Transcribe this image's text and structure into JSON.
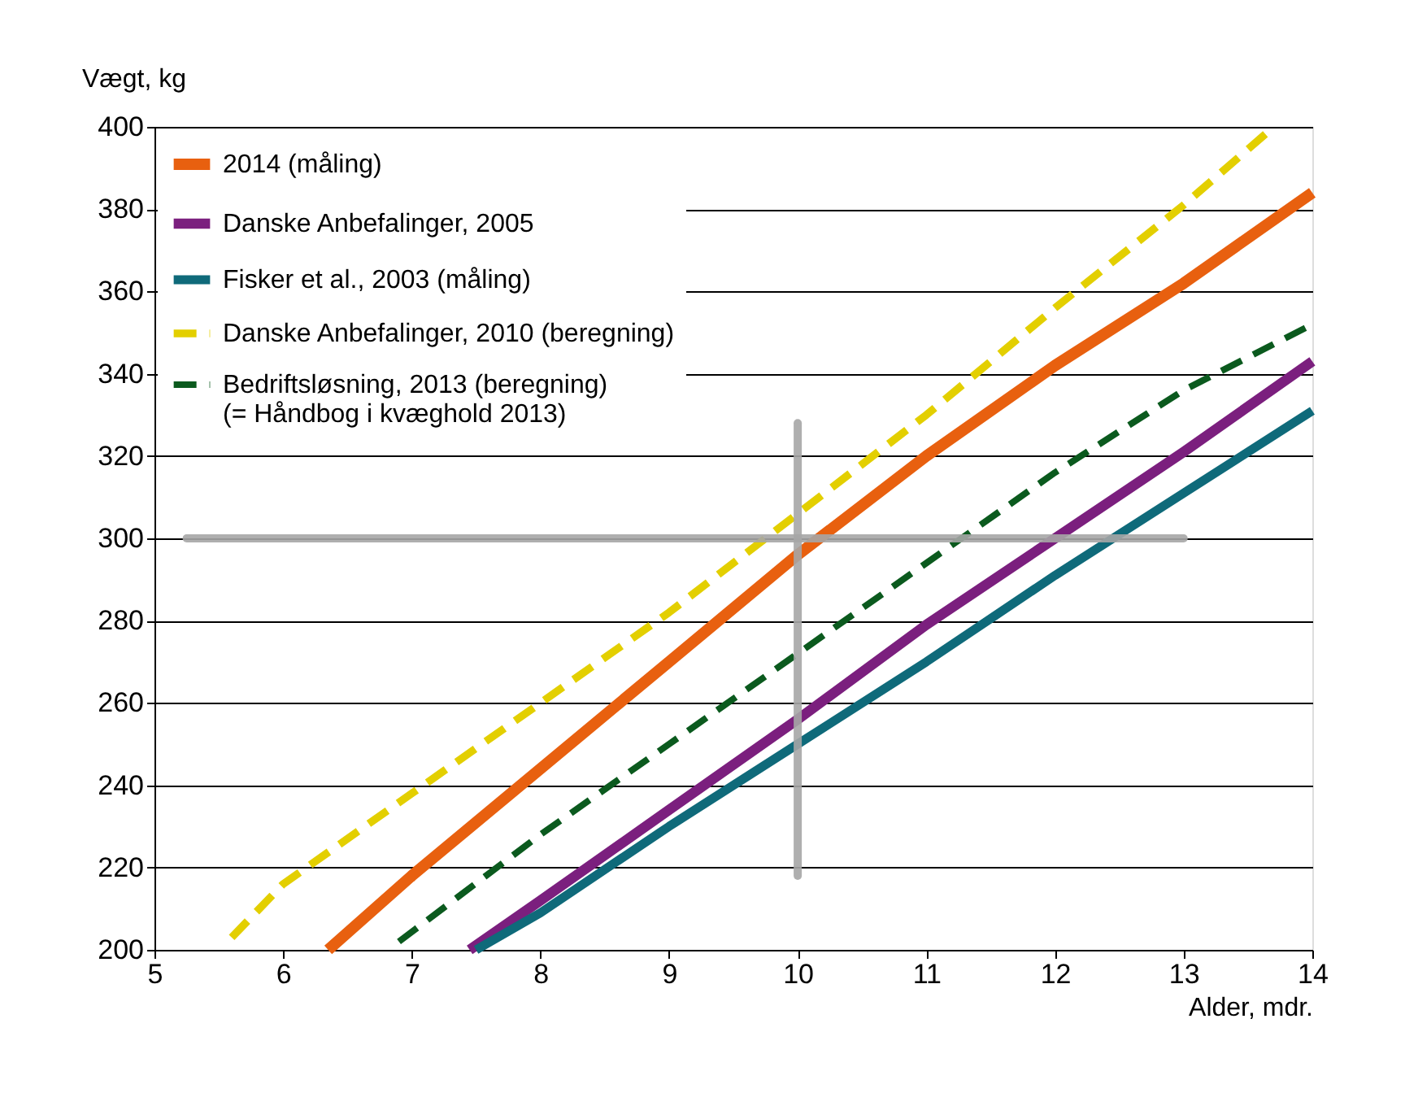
{
  "chart_data": {
    "type": "line",
    "xlabel": "Alder, mdr.",
    "ylabel": "Vægt, kg",
    "xlim": [
      5,
      14
    ],
    "xticks": [
      5,
      6,
      7,
      8,
      9,
      10,
      11,
      12,
      13,
      14
    ],
    "ylim": [
      200,
      400
    ],
    "yticks": [
      200,
      220,
      240,
      260,
      280,
      300,
      320,
      340,
      360,
      380,
      400
    ],
    "grid": "y",
    "legend": "top left",
    "marker": "none",
    "series": [
      {
        "name": "2014 (måling)",
        "color": "#e8600f",
        "line_style": "solid",
        "x": [
          6.35,
          7,
          8,
          9,
          10,
          11,
          12,
          13,
          14
        ],
        "values": [
          200,
          218,
          244,
          270,
          296,
          320,
          342,
          362,
          384
        ]
      },
      {
        "name": "Danske Anbefalinger, 2005",
        "color": "#7b1f7e",
        "line_style": "solid",
        "x": [
          7.45,
          8,
          9,
          10,
          11,
          12,
          13,
          14
        ],
        "values": [
          200,
          212,
          234,
          256,
          279,
          300,
          321,
          343
        ]
      },
      {
        "name": "Fisker et al., 2003 (måling)",
        "color": "#0f6a7a",
        "line_style": "solid",
        "x": [
          7.5,
          8,
          9,
          10,
          11,
          12,
          13,
          14
        ],
        "values": [
          200,
          209,
          230,
          250,
          270,
          291,
          311,
          331
        ]
      },
      {
        "name": "Danske Anbefalinger, 2010 (beregning)",
        "color": "#e3cf00",
        "line_style": "dashed",
        "x": [
          5.6,
          6,
          7,
          8,
          9,
          10,
          11,
          12,
          13,
          13.7
        ],
        "values": [
          203,
          216,
          238,
          260,
          282,
          306,
          330,
          356,
          381,
          400
        ]
      },
      {
        "name": "Bedriftsløsning, 2013 (beregning)\n(= Håndbog i kvæghold 2013)",
        "color": "#0b5a1e",
        "line_style": "dashed",
        "x": [
          6.9,
          8,
          9,
          10,
          11,
          12,
          13,
          14
        ],
        "values": [
          202,
          228,
          250,
          272,
          294,
          316,
          336,
          352
        ]
      },
      {
        "color": "#a6a6a6",
        "line_style": "solid",
        "x": [
          5.25,
          13
        ],
        "values": [
          300,
          300
        ]
      },
      {
        "color": "#a6a6a6",
        "line_style": "solid",
        "x": [
          10,
          10
        ],
        "values": [
          218,
          328
        ]
      }
    ]
  }
}
